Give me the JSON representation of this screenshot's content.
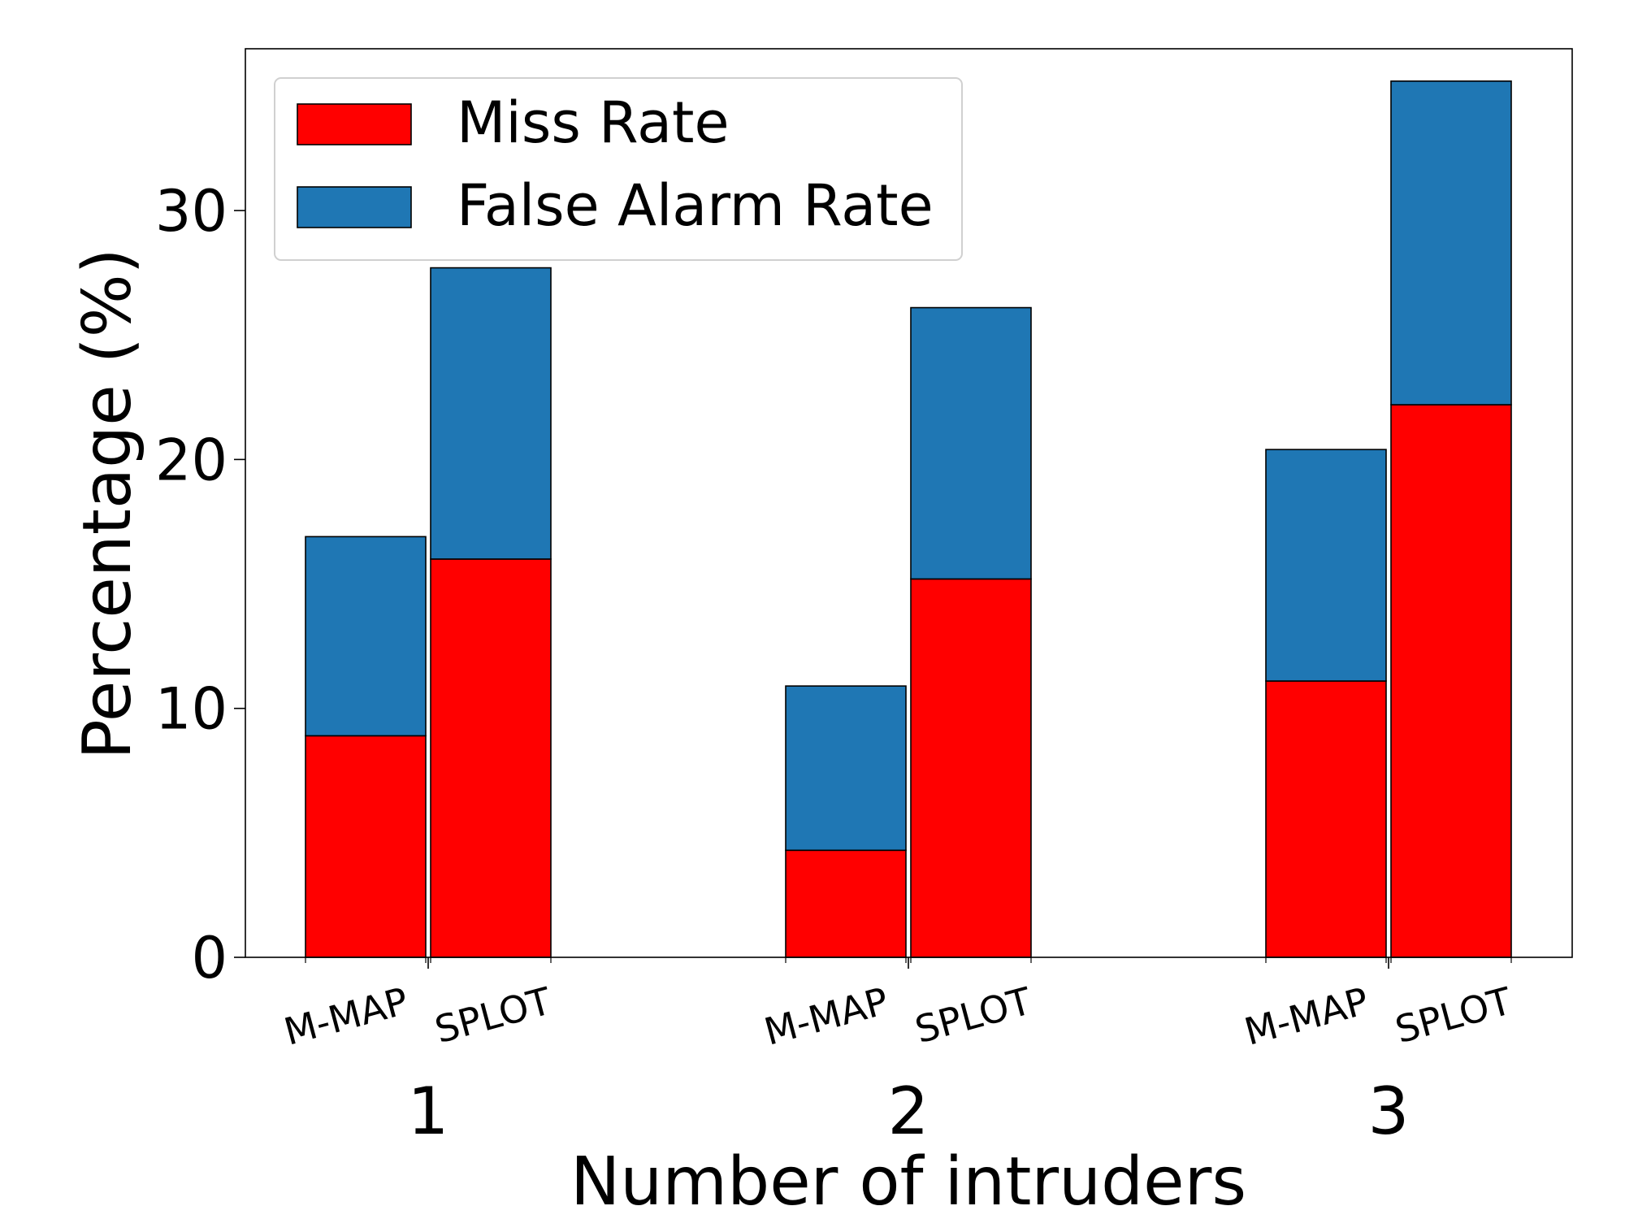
{
  "chart_data": {
    "type": "bar",
    "stacked": true,
    "xlabel": "Number of intruders",
    "ylabel": "Percentage (%)",
    "ylim": [
      0,
      36.5
    ],
    "yticks": [
      0,
      10,
      20,
      30
    ],
    "grid": false,
    "legend_position": "top-left",
    "groups": [
      "1",
      "2",
      "3"
    ],
    "methods": [
      "M-MAP",
      "SPLOT"
    ],
    "series": [
      {
        "name": "Miss Rate",
        "color": "#ff0000",
        "values": [
          [
            8.9,
            16.0
          ],
          [
            4.3,
            15.2
          ],
          [
            11.1,
            22.2
          ]
        ]
      },
      {
        "name": "False Alarm Rate",
        "color": "#1f77b4",
        "values": [
          [
            8.0,
            11.7
          ],
          [
            6.6,
            10.9
          ],
          [
            9.3,
            13.0
          ]
        ]
      }
    ]
  }
}
